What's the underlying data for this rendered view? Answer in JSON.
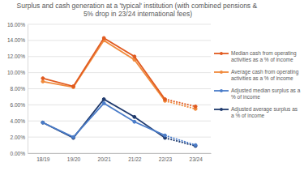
{
  "chart_data": {
    "type": "line",
    "title": "Surplus and cash generation at a 'typical' institution (with combined pensions & 5% drop in 23/24 international fees)",
    "categories": [
      "18/19",
      "19/20",
      "20/21",
      "21/22",
      "22/23",
      "23/24"
    ],
    "series": [
      {
        "name": "Median cash from operating activities as a % of income",
        "color": "#e15a1f",
        "values": [
          9.3,
          8.3,
          14.3,
          12.0,
          6.7,
          5.8
        ]
      },
      {
        "name": "Average cash from operating activities as a % of income",
        "color": "#f08a3c",
        "values": [
          8.9,
          8.2,
          14.0,
          11.6,
          6.5,
          5.5
        ]
      },
      {
        "name": "Adjusted median surplus as a % of income",
        "color": "#4a7cc9",
        "values": [
          3.8,
          2.0,
          6.2,
          3.9,
          2.2,
          1.0
        ]
      },
      {
        "name": "Adjusted average surplus as a % of income",
        "color": "#1f3a6e",
        "values": [
          3.8,
          1.9,
          6.7,
          4.5,
          1.9,
          0.9
        ]
      }
    ],
    "ylim": [
      0,
      16
    ],
    "yticks": [
      {
        "value": 0,
        "label": "0.00%"
      },
      {
        "value": 2,
        "label": "2.00%"
      },
      {
        "value": 4,
        "label": "4.00%"
      },
      {
        "value": 6,
        "label": "6.00%"
      },
      {
        "value": 8,
        "label": "8.00%"
      },
      {
        "value": 10,
        "label": "10.00%"
      },
      {
        "value": 12,
        "label": "12.00%"
      },
      {
        "value": 14,
        "label": "14.00%"
      },
      {
        "value": 16,
        "label": "16.00%"
      }
    ],
    "grid": true,
    "legend": "right",
    "marker": "circle",
    "line_style": "solid"
  }
}
